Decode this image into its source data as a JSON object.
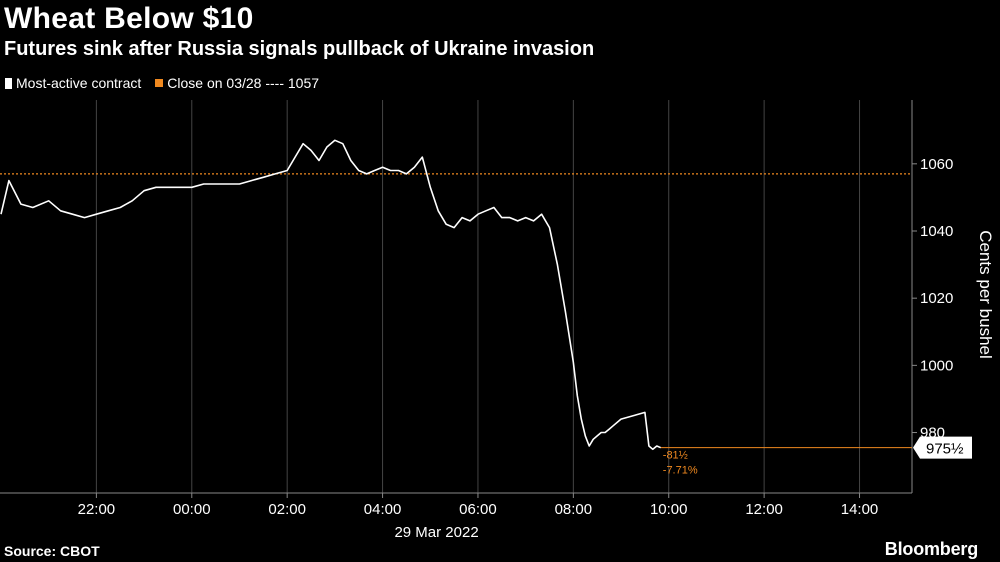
{
  "header": {
    "title": "Wheat Below $10",
    "subtitle": "Futures sink after Russia signals pullback of Ukraine invasion"
  },
  "legend": {
    "series_label": "Most-active contract",
    "reference_label": "Close on 03/28 ---- 1057"
  },
  "footer": {
    "source": "Source: CBOT",
    "brand": "Bloomberg"
  },
  "colors": {
    "background": "#000000",
    "series": "#ffffff",
    "reference": "#f0891f",
    "grid": "#444444",
    "change": "#f0891f"
  },
  "chart_data": {
    "type": "line",
    "title": "Wheat Below $10",
    "subtitle": "Futures sink after Russia signals pullback of Ukraine invasion",
    "ylabel": "Cents per bushel",
    "xlabel": "29 Mar 2022",
    "date_label": "29 Mar 2022",
    "ylim": [
      962,
      1079
    ],
    "xlim": [
      "20:00",
      "15:00"
    ],
    "x_ticks": [
      "22:00",
      "00:00",
      "02:00",
      "04:00",
      "06:00",
      "08:00",
      "10:00",
      "12:00",
      "14:00"
    ],
    "y_ticks": [
      980,
      1000,
      1020,
      1040,
      1060
    ],
    "reference_line": {
      "label": "Close on 03/28",
      "value": 1057
    },
    "last_value": 975.5,
    "last_value_label": "975½",
    "change_label": "-81½",
    "change_pct_label": "-7.71%",
    "grid": true,
    "series": [
      {
        "name": "Most-active contract",
        "x": [
          "20:00",
          "20:10",
          "20:25",
          "20:40",
          "21:00",
          "21:15",
          "21:30",
          "21:45",
          "22:00",
          "22:15",
          "22:30",
          "22:45",
          "23:00",
          "23:15",
          "23:30",
          "23:45",
          "00:00",
          "00:15",
          "00:30",
          "00:45",
          "01:00",
          "01:15",
          "01:30",
          "01:45",
          "02:00",
          "02:10",
          "02:20",
          "02:30",
          "02:40",
          "02:50",
          "03:00",
          "03:10",
          "03:20",
          "03:30",
          "03:40",
          "03:50",
          "04:00",
          "04:10",
          "04:20",
          "04:30",
          "04:40",
          "04:50",
          "05:00",
          "05:10",
          "05:20",
          "05:30",
          "05:40",
          "05:50",
          "06:00",
          "06:10",
          "06:20",
          "06:30",
          "06:40",
          "06:50",
          "07:00",
          "07:10",
          "07:20",
          "07:30",
          "07:40",
          "07:50",
          "08:00",
          "08:05",
          "08:10",
          "08:15",
          "08:20",
          "08:25",
          "08:30",
          "08:35",
          "08:40",
          "08:45",
          "08:50",
          "09:00",
          "09:30",
          "09:35",
          "09:40",
          "09:45",
          "09:50"
        ],
        "values": [
          1045,
          1055,
          1048,
          1047,
          1049,
          1046,
          1045,
          1044,
          1045,
          1046,
          1047,
          1049,
          1052,
          1053,
          1053,
          1053,
          1053,
          1054,
          1054,
          1054,
          1054,
          1055,
          1056,
          1057,
          1058,
          1062,
          1066,
          1064,
          1061,
          1065,
          1067,
          1066,
          1061,
          1058,
          1057,
          1058,
          1059,
          1058,
          1058,
          1057,
          1059,
          1062,
          1053,
          1046,
          1042,
          1041,
          1044,
          1043,
          1045,
          1046,
          1047,
          1044,
          1044,
          1043,
          1044,
          1043,
          1045,
          1041,
          1030,
          1016,
          1001,
          991,
          984,
          979,
          976,
          978,
          979,
          980,
          980,
          981,
          982,
          984,
          986,
          976,
          975,
          976,
          975.5
        ]
      }
    ]
  }
}
